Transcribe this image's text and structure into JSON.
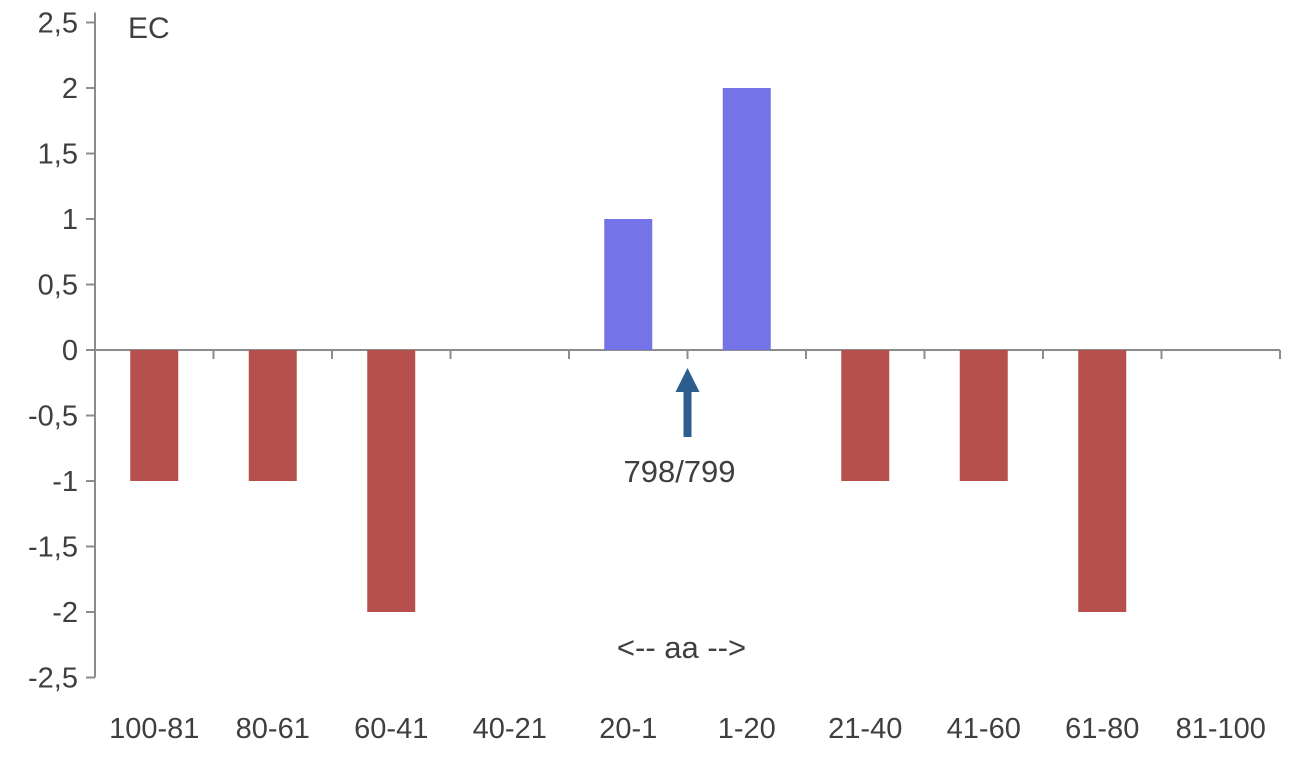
{
  "chart_data": {
    "type": "bar",
    "title": "",
    "ylabel": "EC",
    "xlabel": "",
    "categories": [
      "100-81",
      "80-61",
      "60-41",
      "40-21",
      "20-1",
      "1-20",
      "21-40",
      "41-60",
      "61-80",
      "81-100"
    ],
    "values": [
      -1,
      -1,
      -2,
      0,
      1,
      2,
      -1,
      -1,
      -2,
      0
    ],
    "ylim": [
      -2.5,
      2.5
    ],
    "ytick_step": 0.5,
    "ytick_labels": [
      "2,5",
      "2",
      "1,5",
      "1",
      "0,5",
      "0",
      "-0,5",
      "-1",
      "-1,5",
      "-2",
      "-2,5"
    ],
    "grid": false,
    "legend": false,
    "bar_colors": {
      "positive": "#7573e8",
      "negative": "#b5504c"
    },
    "axis_color": "#8c8c8c",
    "text_color": "#3f3f3f",
    "arrow_color": "#2c5d8f",
    "annotations": [
      {
        "id": "peak-label",
        "text": "798/799",
        "arrow": "up",
        "target_boundary": "20-1 / 1-20"
      },
      {
        "id": "aa-label",
        "text": "<-- aa -->"
      }
    ]
  }
}
